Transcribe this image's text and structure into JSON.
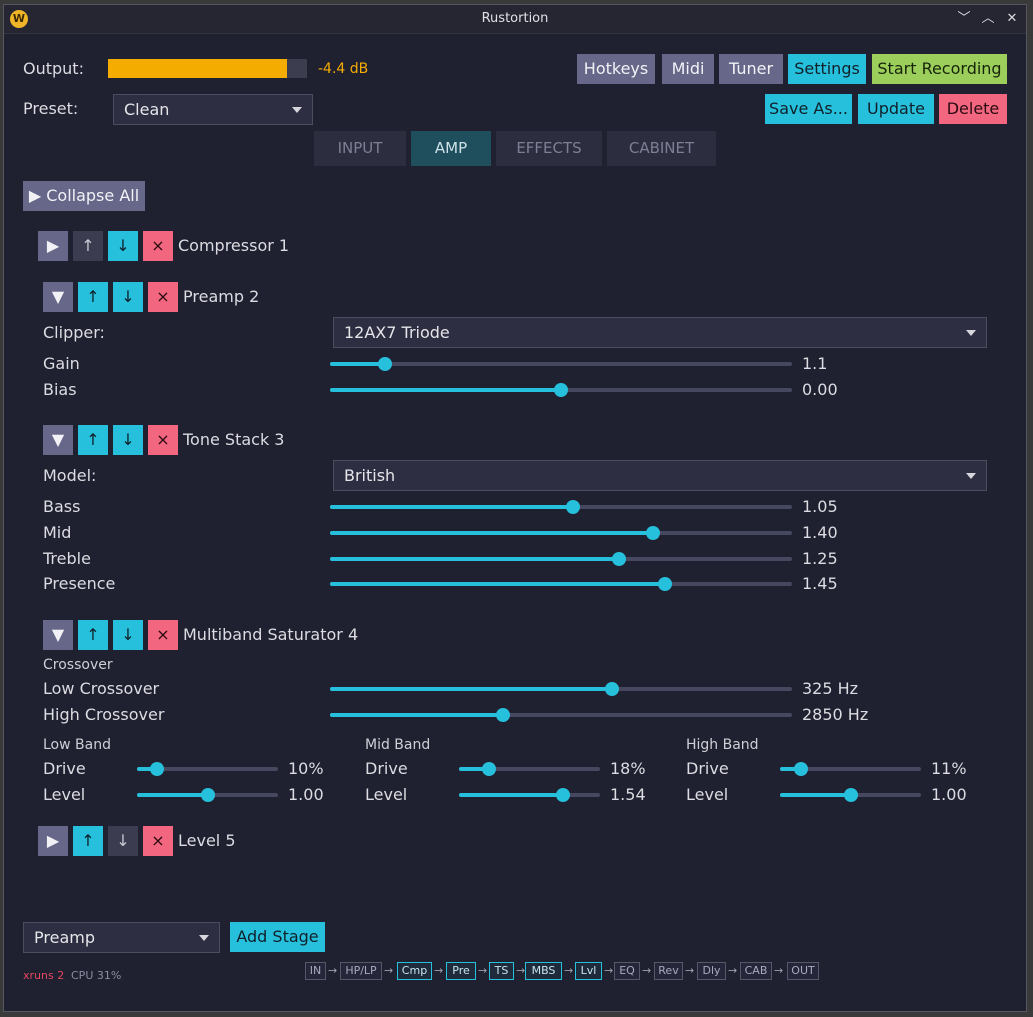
{
  "window": {
    "title": "Rustortion",
    "icon_letter": "W",
    "minimize": "﹀",
    "maximize": "︿",
    "close": "✕"
  },
  "header": {
    "output_label": "Output:",
    "output_db": "-4.4 dB",
    "output_level": 0.9,
    "preset_label": "Preset:",
    "preset_value": "Clean",
    "buttons": {
      "hotkeys": "Hotkeys",
      "midi": "Midi",
      "tuner": "Tuner",
      "settings": "Settings",
      "start_recording": "Start Recording",
      "save_as": "Save As...",
      "update": "Update",
      "delete": "Delete"
    }
  },
  "tabs": [
    {
      "label": "INPUT",
      "active": false
    },
    {
      "label": "AMP",
      "active": true
    },
    {
      "label": "EFFECTS",
      "active": false
    },
    {
      "label": "CABINET",
      "active": false
    }
  ],
  "collapse_all": "▶ Collapse All",
  "icons": {
    "expand": "▶",
    "collapse": "▼",
    "up": "↑",
    "down": "↓",
    "remove": "×"
  },
  "stages": {
    "compressor": {
      "name": "Compressor 1"
    },
    "preamp": {
      "name": "Preamp 2",
      "clipper_label": "Clipper:",
      "clipper_value": "12AX7 Triode",
      "gain": {
        "label": "Gain",
        "value": "1.1",
        "pos": 0.12
      },
      "bias": {
        "label": "Bias",
        "value": "0.00",
        "pos": 0.5
      }
    },
    "tonestack": {
      "name": "Tone Stack 3",
      "model_label": "Model:",
      "model_value": "British",
      "bass": {
        "label": "Bass",
        "value": "1.05",
        "pos": 0.525
      },
      "mid": {
        "label": "Mid",
        "value": "1.40",
        "pos": 0.7
      },
      "treble": {
        "label": "Treble",
        "value": "1.25",
        "pos": 0.625
      },
      "presence": {
        "label": "Presence",
        "value": "1.45",
        "pos": 0.725
      }
    },
    "multiband": {
      "name": "Multiband Saturator 4",
      "crossover_heading": "Crossover",
      "low_crossover": {
        "label": "Low Crossover",
        "value": "325 Hz",
        "pos": 0.61
      },
      "high_crossover": {
        "label": "High Crossover",
        "value": "2850 Hz",
        "pos": 0.375
      },
      "low_band": {
        "heading": "Low Band",
        "drive_label": "Drive",
        "drive_value": "10%",
        "drive_pos": 0.14,
        "level_label": "Level",
        "level_value": "1.00",
        "level_pos": 0.5
      },
      "mid_band": {
        "heading": "Mid Band",
        "drive_label": "Drive",
        "drive_value": "18%",
        "drive_pos": 0.21,
        "level_label": "Level",
        "level_value": "1.54",
        "level_pos": 0.74
      },
      "high_band": {
        "heading": "High Band",
        "drive_label": "Drive",
        "drive_value": "11%",
        "drive_pos": 0.15,
        "level_label": "Level",
        "level_value": "1.00",
        "level_pos": 0.5
      }
    },
    "level": {
      "name": "Level 5"
    }
  },
  "footer": {
    "stage_select": "Preamp",
    "add_stage": "Add Stage",
    "xruns": "xruns 2",
    "cpu": "CPU 31%",
    "chain": [
      {
        "label": "IN",
        "active": false
      },
      {
        "label": "HP/LP",
        "active": false
      },
      {
        "label": "Cmp",
        "active": true
      },
      {
        "label": "Pre",
        "active": true
      },
      {
        "label": "TS",
        "active": true
      },
      {
        "label": "MBS",
        "active": true
      },
      {
        "label": "Lvl",
        "active": true
      },
      {
        "label": "EQ",
        "active": false
      },
      {
        "label": "Rev",
        "active": false
      },
      {
        "label": "Dly",
        "active": false
      },
      {
        "label": "CAB",
        "active": false
      },
      {
        "label": "OUT",
        "active": false
      }
    ],
    "arrow": "→"
  },
  "colors": {
    "accent": "#27c0dc",
    "meter": "#f5ac00",
    "slate": "#666789",
    "green": "#9bce5a",
    "pink": "#f2677f",
    "xruns": "#e8475e"
  }
}
